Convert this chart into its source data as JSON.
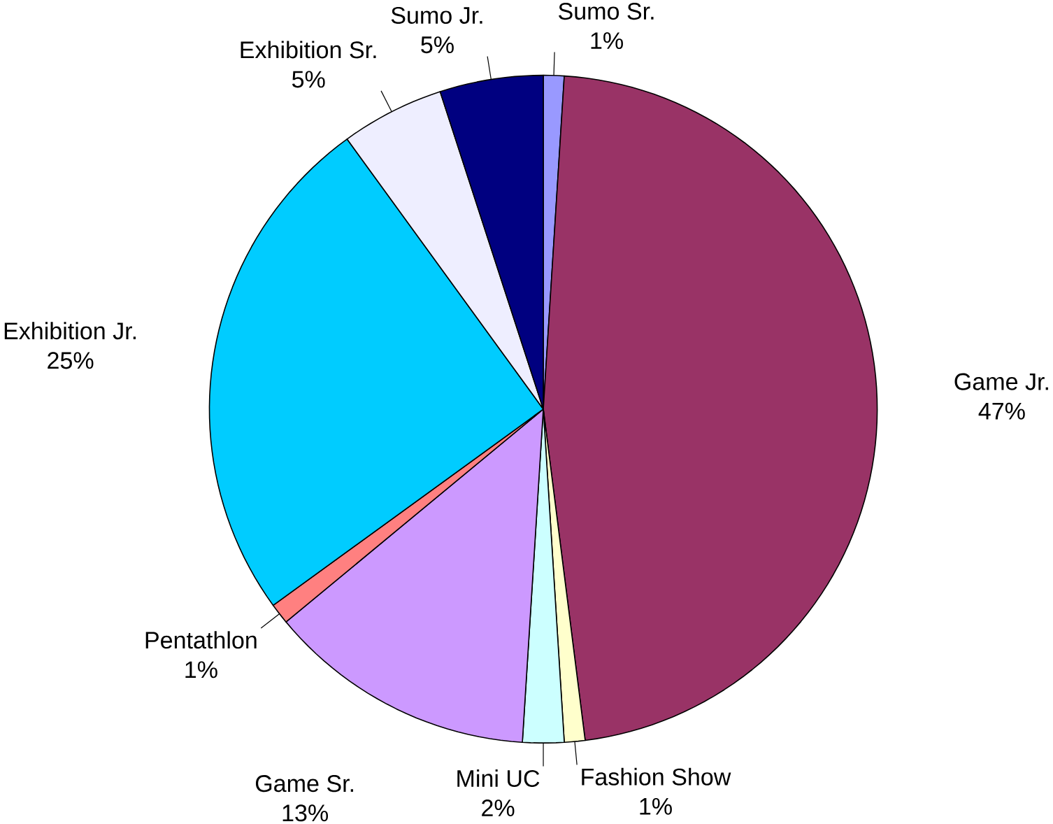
{
  "chart_data": {
    "type": "pie",
    "categories": [
      "Sumo Sr.",
      "Game Jr.",
      "Fashion Show",
      "Mini UC",
      "Game Sr.",
      "Pentathlon",
      "Exhibition Jr.",
      "Exhibition Sr.",
      "Sumo Jr."
    ],
    "values": [
      1,
      47,
      1,
      2,
      13,
      1,
      25,
      5,
      5
    ],
    "value_labels": [
      "1%",
      "47%",
      "1%",
      "2%",
      "13%",
      "1%",
      "25%",
      "5%",
      "5%"
    ],
    "colors": [
      "#9999ff",
      "#993366",
      "#ffffcc",
      "#ccffff",
      "#cc99ff",
      "#ff8080",
      "#00ccff",
      "#eeeeff",
      "#000080"
    ]
  }
}
